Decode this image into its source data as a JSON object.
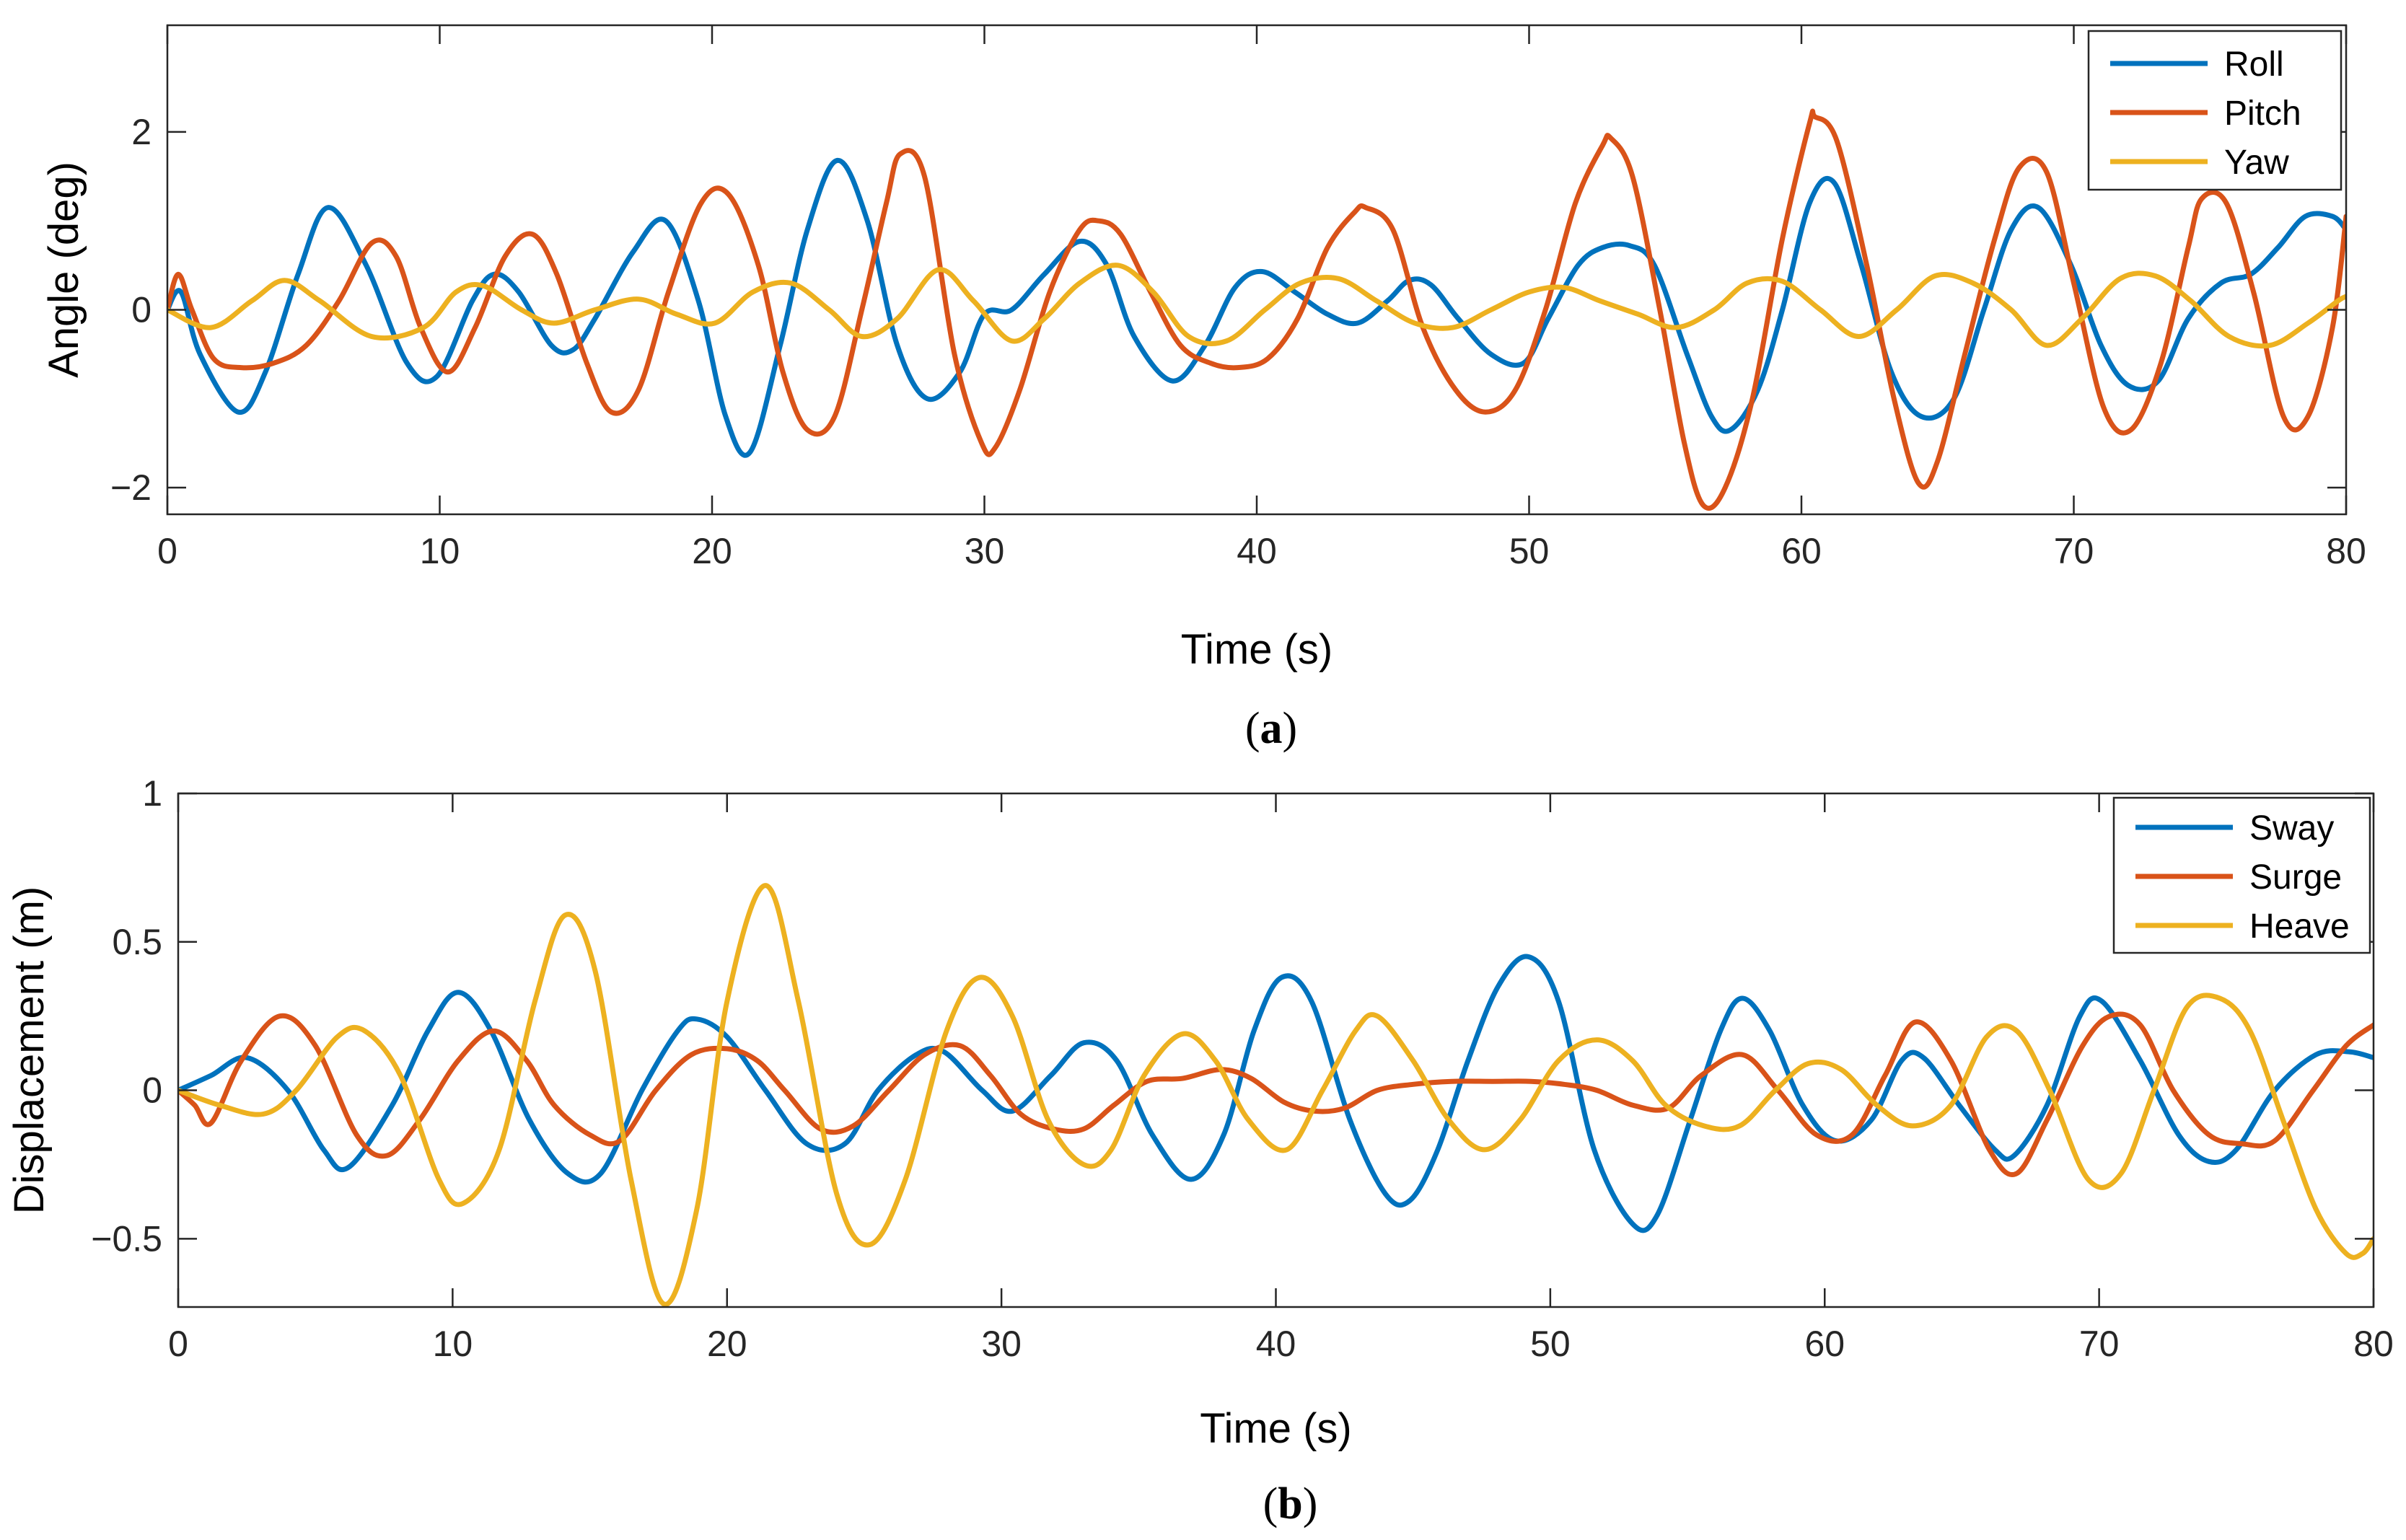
{
  "chart_data": [
    {
      "type": "line",
      "panel_label": "a",
      "title": "",
      "xlabel": "Time (s)",
      "ylabel": "Angle (deg)",
      "xlim": [
        0,
        80
      ],
      "ylim": [
        -2.3,
        3.2
      ],
      "xticks": [
        0,
        10,
        20,
        30,
        40,
        50,
        60,
        70,
        80
      ],
      "yticks": [
        -2,
        0,
        2
      ],
      "ytick_labels": [
        "−2",
        "0",
        "2"
      ],
      "grid": false,
      "legend_position": "top-right",
      "series": [
        {
          "name": "Roll",
          "color": "#0072BD",
          "x": [
            0,
            0.5,
            1.2,
            2.6,
            3.6,
            4.8,
            5.9,
            7.3,
            8.8,
            9.9,
            11.2,
            12.0,
            12.9,
            14.1,
            14.9,
            15.7,
            17.1,
            18.3,
            19.5,
            20.5,
            21.4,
            22.5,
            23.5,
            24.6,
            25.7,
            26.8,
            27.9,
            29.1,
            30.0,
            31.0,
            32.2,
            33.5,
            34.5,
            35.5,
            36.9,
            38.1,
            39.2,
            40.2,
            41.4,
            42.6,
            43.7,
            44.8,
            45.6,
            46.4,
            47.4,
            48.6,
            49.8,
            50.7,
            51.8,
            52.7,
            53.7,
            54.6,
            55.8,
            56.7,
            57.4,
            58.4,
            59.3,
            60.3,
            61.2,
            62.2,
            63.3,
            64.4,
            65.6,
            66.7,
            67.7,
            68.7,
            69.9,
            71.0,
            72.0,
            73.1,
            74.2,
            75.4,
            76.5,
            77.5,
            78.5,
            79.5,
            80.0
          ],
          "y": [
            0,
            0.2,
            -0.5,
            -1.15,
            -0.7,
            0.4,
            1.15,
            0.5,
            -0.6,
            -0.75,
            0.1,
            0.4,
            0.2,
            -0.4,
            -0.45,
            -0.1,
            0.65,
            1.0,
            0.1,
            -1.2,
            -1.6,
            -0.4,
            0.9,
            1.68,
            1.0,
            -0.4,
            -1.0,
            -0.7,
            -0.05,
            0.0,
            0.4,
            0.77,
            0.5,
            -0.3,
            -0.8,
            -0.4,
            0.25,
            0.43,
            0.2,
            -0.05,
            -0.15,
            0.1,
            0.33,
            0.28,
            -0.1,
            -0.5,
            -0.6,
            -0.1,
            0.5,
            0.7,
            0.72,
            0.5,
            -0.5,
            -1.2,
            -1.35,
            -0.9,
            0.0,
            1.2,
            1.43,
            0.5,
            -0.7,
            -1.2,
            -1.0,
            0.0,
            0.9,
            1.15,
            0.5,
            -0.4,
            -0.85,
            -0.8,
            -0.1,
            0.3,
            0.4,
            0.7,
            1.05,
            1.05,
            0.9
          ]
        },
        {
          "name": "Pitch",
          "color": "#D95319",
          "x": [
            0,
            0.4,
            0.9,
            1.7,
            2.7,
            3.9,
            5.1,
            6.3,
            7.5,
            8.4,
            9.3,
            10.3,
            11.3,
            12.4,
            13.4,
            14.3,
            15.4,
            16.3,
            17.3,
            18.4,
            19.6,
            20.6,
            21.7,
            22.6,
            23.5,
            24.5,
            25.5,
            26.4,
            26.9,
            27.8,
            28.9,
            29.9,
            30.4,
            31.3,
            32.4,
            33.5,
            34.2,
            35.0,
            36.1,
            37.2,
            38.3,
            39.3,
            40.4,
            41.5,
            42.6,
            43.6,
            44.0,
            45.0,
            46.1,
            47.3,
            48.4,
            49.5,
            50.6,
            51.7,
            52.7,
            53.0,
            53.8,
            54.8,
            55.7,
            56.4,
            57.2,
            58.2,
            59.3,
            60.3,
            60.5,
            61.3,
            62.4,
            63.4,
            64.3,
            65.0,
            66.0,
            67.1,
            68.0,
            69.0,
            70.0,
            71.1,
            72.1,
            73.2,
            74.2,
            74.7,
            75.6,
            76.6,
            77.7,
            78.6,
            79.5,
            80.0
          ],
          "y": [
            0,
            0.4,
            0.0,
            -0.55,
            -0.65,
            -0.6,
            -0.4,
            0.1,
            0.75,
            0.6,
            -0.2,
            -0.7,
            -0.2,
            0.6,
            0.85,
            0.4,
            -0.6,
            -1.15,
            -0.9,
            0.2,
            1.2,
            1.3,
            0.5,
            -0.7,
            -1.35,
            -1.2,
            0.0,
            1.2,
            1.75,
            1.5,
            -0.5,
            -1.5,
            -1.55,
            -0.9,
            0.2,
            0.9,
            1.0,
            0.85,
            0.2,
            -0.4,
            -0.6,
            -0.65,
            -0.55,
            -0.1,
            0.7,
            1.1,
            1.15,
            0.9,
            -0.2,
            -0.9,
            -1.15,
            -0.9,
            0.0,
            1.2,
            1.85,
            1.93,
            1.5,
            0.0,
            -1.5,
            -2.2,
            -2.0,
            -1.0,
            0.8,
            2.1,
            2.17,
            1.9,
            0.5,
            -1.0,
            -1.95,
            -1.7,
            -0.5,
            0.8,
            1.6,
            1.55,
            0.3,
            -1.1,
            -1.35,
            -0.6,
            0.7,
            1.25,
            1.2,
            0.2,
            -1.2,
            -1.2,
            -0.2,
            1.05
          ]
        },
        {
          "name": "Yaw",
          "color": "#EDB120",
          "x": [
            0,
            1.6,
            3.1,
            4.3,
            5.6,
            7.5,
            9.4,
            10.6,
            11.6,
            13.0,
            14.2,
            15.7,
            17.3,
            18.7,
            20.1,
            21.5,
            22.9,
            24.3,
            25.5,
            26.8,
            28.3,
            29.6,
            31.0,
            32.2,
            33.5,
            34.9,
            36.2,
            37.5,
            38.9,
            40.3,
            41.6,
            43.0,
            44.4,
            45.8,
            47.2,
            48.6,
            50.0,
            51.3,
            52.6,
            54.0,
            55.4,
            56.8,
            58.0,
            59.3,
            60.7,
            62.1,
            63.5,
            64.9,
            66.3,
            67.7,
            69.0,
            70.3,
            71.7,
            73.0,
            74.3,
            75.7,
            77.2,
            78.6,
            79.7,
            80.0
          ],
          "y": [
            0,
            -0.2,
            0.1,
            0.33,
            0.1,
            -0.3,
            -0.2,
            0.2,
            0.27,
            0.0,
            -0.15,
            0.0,
            0.12,
            -0.05,
            -0.15,
            0.2,
            0.3,
            0.0,
            -0.3,
            -0.1,
            0.45,
            0.1,
            -0.35,
            -0.1,
            0.3,
            0.5,
            0.2,
            -0.3,
            -0.35,
            0.0,
            0.3,
            0.35,
            0.1,
            -0.15,
            -0.2,
            0.0,
            0.2,
            0.25,
            0.1,
            -0.05,
            -0.2,
            0.0,
            0.3,
            0.32,
            0.0,
            -0.3,
            0.0,
            0.38,
            0.3,
            0.0,
            -0.4,
            -0.1,
            0.35,
            0.38,
            0.1,
            -0.3,
            -0.4,
            -0.15,
            0.1,
            0.15
          ]
        }
      ]
    },
    {
      "type": "line",
      "panel_label": "b",
      "title": "",
      "xlabel": "Time (s)",
      "ylabel": "Displacement (m)",
      "xlim": [
        0,
        80
      ],
      "ylim": [
        -0.73,
        1.0
      ],
      "xticks": [
        0,
        10,
        20,
        30,
        40,
        50,
        60,
        70,
        80
      ],
      "yticks": [
        -0.5,
        0,
        0.5,
        1
      ],
      "ytick_labels": [
        "−0.5",
        "0",
        "0.5",
        "1"
      ],
      "grid": false,
      "legend_position": "top-right",
      "series": [
        {
          "name": "Sway",
          "color": "#0072BD",
          "x": [
            0,
            1.2,
            2.5,
            4.0,
            5.3,
            6.2,
            7.8,
            9.1,
            10.2,
            11.4,
            12.8,
            14.2,
            15.4,
            16.9,
            18.2,
            18.9,
            20.0,
            21.4,
            22.9,
            24.3,
            25.5,
            26.9,
            27.9,
            29.3,
            30.4,
            31.8,
            33.0,
            34.2,
            35.5,
            36.9,
            38.1,
            39.2,
            40.2,
            41.3,
            42.7,
            44.0,
            44.9,
            45.9,
            47.0,
            48.1,
            49.2,
            50.3,
            51.6,
            53.0,
            53.9,
            55.1,
            56.2,
            57.0,
            58.0,
            59.2,
            60.4,
            61.7,
            62.8,
            63.6,
            64.9,
            66.2,
            66.9,
            68.1,
            69.3,
            70.1,
            71.5,
            72.9,
            74.0,
            75.0,
            76.4,
            77.9,
            79.1,
            80.0
          ],
          "y": [
            0,
            0.05,
            0.11,
            0.0,
            -0.2,
            -0.26,
            -0.05,
            0.2,
            0.33,
            0.2,
            -0.1,
            -0.28,
            -0.28,
            0.0,
            0.2,
            0.24,
            0.18,
            0.0,
            -0.18,
            -0.18,
            0.0,
            0.12,
            0.13,
            0.0,
            -0.07,
            0.05,
            0.16,
            0.1,
            -0.15,
            -0.3,
            -0.15,
            0.2,
            0.38,
            0.3,
            -0.1,
            -0.35,
            -0.37,
            -0.2,
            0.1,
            0.35,
            0.45,
            0.3,
            -0.2,
            -0.45,
            -0.42,
            -0.1,
            0.2,
            0.31,
            0.2,
            -0.05,
            -0.17,
            -0.1,
            0.1,
            0.11,
            -0.05,
            -0.2,
            -0.22,
            -0.05,
            0.25,
            0.3,
            0.1,
            -0.15,
            -0.24,
            -0.2,
            0.0,
            0.12,
            0.13,
            0.11
          ]
        },
        {
          "name": "Surge",
          "color": "#D95319",
          "x": [
            0,
            0.6,
            1.2,
            2.3,
            3.7,
            5.0,
            6.5,
            7.6,
            8.8,
            10.2,
            11.5,
            12.7,
            13.7,
            15.0,
            16.1,
            17.4,
            18.7,
            20.0,
            21.1,
            22.1,
            23.4,
            24.6,
            25.9,
            27.2,
            28.5,
            29.6,
            30.7,
            31.9,
            33.0,
            34.1,
            35.3,
            36.6,
            38.0,
            39.1,
            40.3,
            41.4,
            42.5,
            43.7,
            45.0,
            46.4,
            47.9,
            49.3,
            50.5,
            51.7,
            53.0,
            54.3,
            55.5,
            57.0,
            58.3,
            59.7,
            61.0,
            62.2,
            63.3,
            64.6,
            66.0,
            67.0,
            68.1,
            69.4,
            70.4,
            71.5,
            72.7,
            74.0,
            75.2,
            76.4,
            77.8,
            79.0,
            80.0
          ],
          "y": [
            0,
            -0.05,
            -0.11,
            0.1,
            0.25,
            0.15,
            -0.15,
            -0.22,
            -0.1,
            0.1,
            0.2,
            0.1,
            -0.05,
            -0.15,
            -0.17,
            0.0,
            0.12,
            0.14,
            0.1,
            0.0,
            -0.13,
            -0.12,
            0.0,
            0.12,
            0.15,
            0.05,
            -0.08,
            -0.13,
            -0.13,
            -0.05,
            0.03,
            0.04,
            0.07,
            0.04,
            -0.04,
            -0.07,
            -0.06,
            0.0,
            0.02,
            0.03,
            0.03,
            0.03,
            0.02,
            0.0,
            -0.05,
            -0.06,
            0.05,
            0.12,
            0.0,
            -0.15,
            -0.15,
            0.05,
            0.23,
            0.1,
            -0.2,
            -0.28,
            -0.1,
            0.15,
            0.25,
            0.22,
            0.0,
            -0.15,
            -0.18,
            -0.17,
            0.0,
            0.15,
            0.22
          ]
        },
        {
          "name": "Heave",
          "color": "#EDB120",
          "x": [
            0,
            1.5,
            3.1,
            4.3,
            5.8,
            6.8,
            8.1,
            9.5,
            10.4,
            11.7,
            13.0,
            14.1,
            15.2,
            16.5,
            17.7,
            18.9,
            20.0,
            21.4,
            22.6,
            24.0,
            25.2,
            26.5,
            28.0,
            29.2,
            30.4,
            31.7,
            33.0,
            34.0,
            35.2,
            36.6,
            37.8,
            39.0,
            40.4,
            41.7,
            42.9,
            43.7,
            45.0,
            46.3,
            47.6,
            48.9,
            50.3,
            51.7,
            53.0,
            54.2,
            55.6,
            56.9,
            58.2,
            59.4,
            60.6,
            61.9,
            63.2,
            64.6,
            65.9,
            67.0,
            68.2,
            69.6,
            70.8,
            72.0,
            73.2,
            74.4,
            75.5,
            76.7,
            77.9,
            79.0,
            79.6,
            80.0
          ],
          "y": [
            0,
            -0.05,
            -0.08,
            0.0,
            0.18,
            0.2,
            0.05,
            -0.3,
            -0.38,
            -0.2,
            0.3,
            0.59,
            0.4,
            -0.3,
            -0.72,
            -0.4,
            0.3,
            0.69,
            0.3,
            -0.35,
            -0.52,
            -0.3,
            0.2,
            0.38,
            0.25,
            -0.1,
            -0.25,
            -0.2,
            0.05,
            0.19,
            0.1,
            -0.1,
            -0.2,
            0.0,
            0.2,
            0.25,
            0.1,
            -0.1,
            -0.2,
            -0.1,
            0.1,
            0.17,
            0.1,
            -0.05,
            -0.12,
            -0.12,
            0.0,
            0.09,
            0.07,
            -0.05,
            -0.12,
            -0.05,
            0.18,
            0.2,
            0.0,
            -0.3,
            -0.28,
            0.0,
            0.28,
            0.31,
            0.2,
            -0.1,
            -0.4,
            -0.55,
            -0.55,
            -0.5
          ]
        }
      ]
    }
  ]
}
